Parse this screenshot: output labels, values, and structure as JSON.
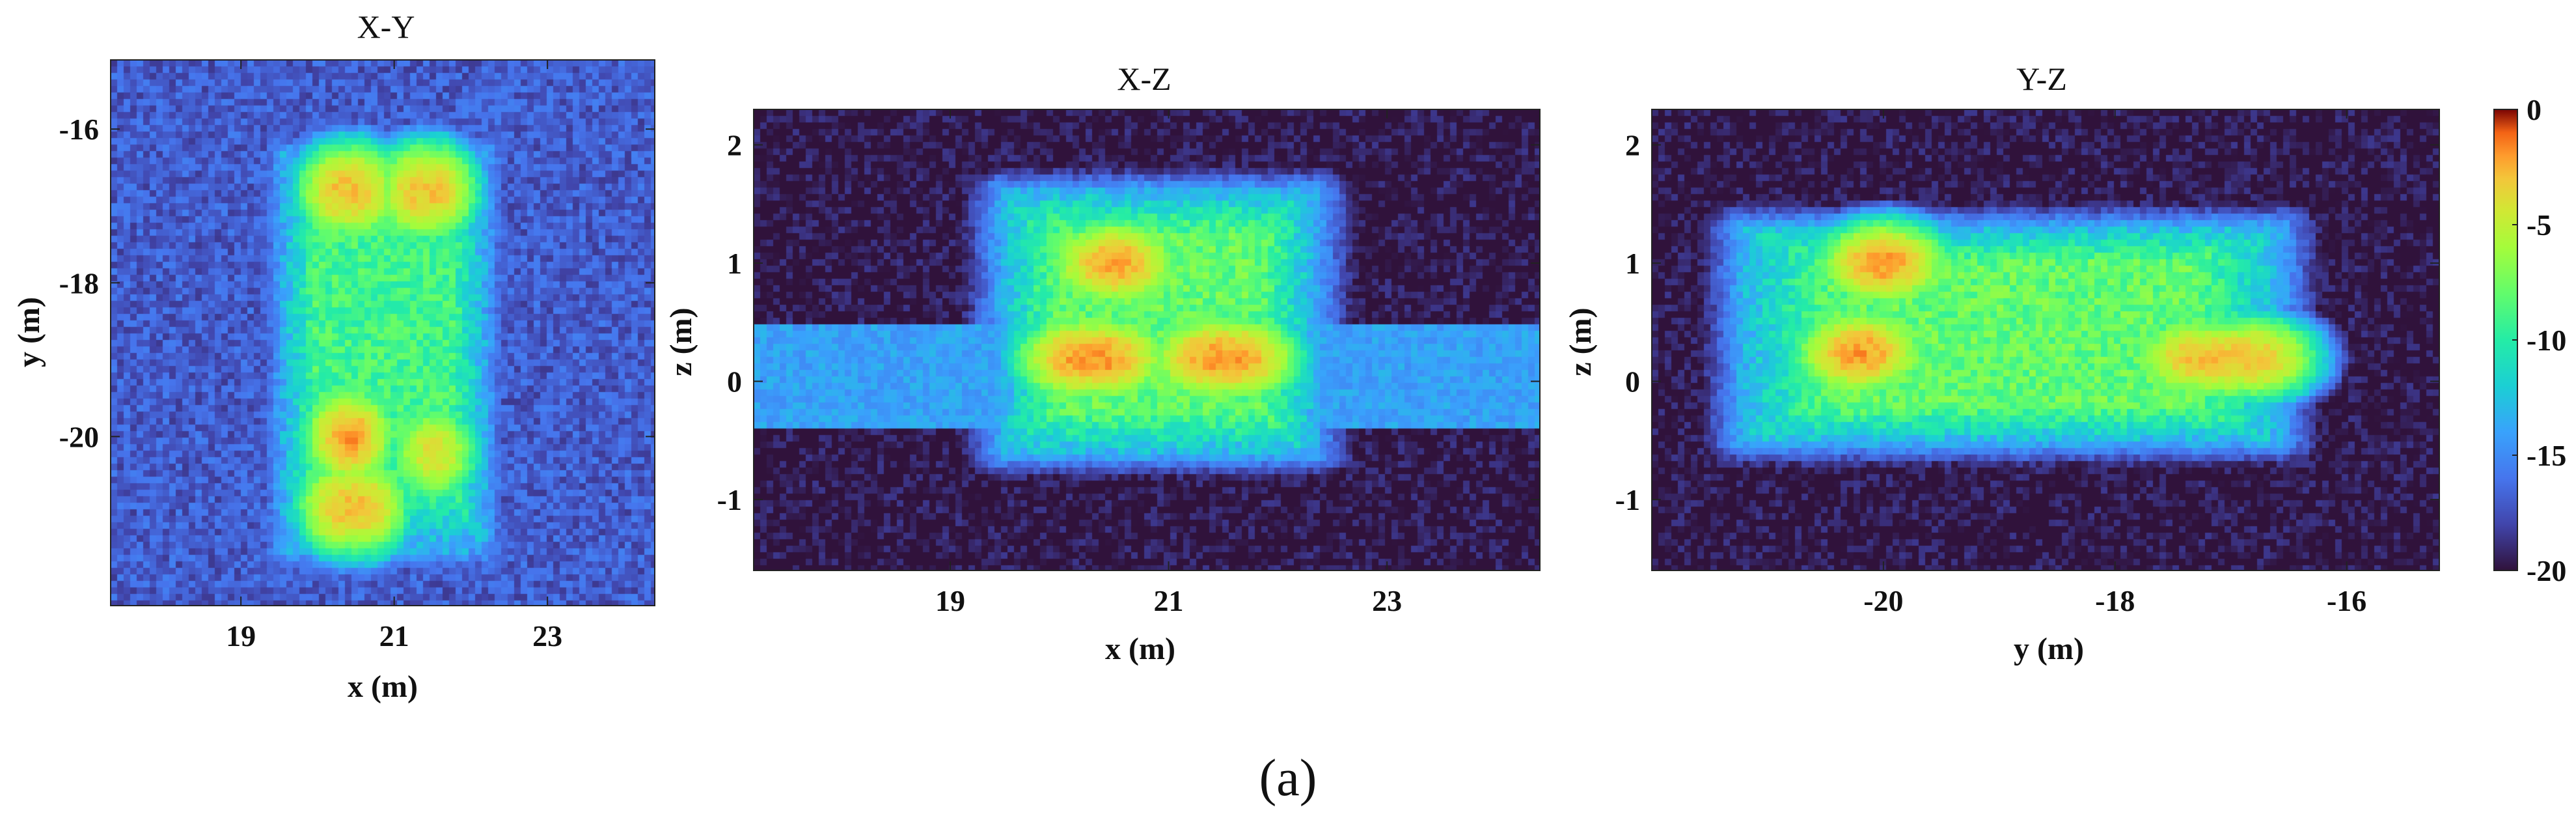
{
  "figure": {
    "caption": "(a)",
    "colorbar": {
      "min": -20,
      "max": 0,
      "ticks": [
        0,
        -5,
        -10,
        -15,
        -20
      ],
      "tick_labels": [
        "0",
        "-5",
        "-10",
        "-15",
        "-20"
      ],
      "colormap": "turbo"
    }
  },
  "chart_data": [
    {
      "type": "heatmap",
      "title": "X-Y",
      "xlabel": "x (m)",
      "ylabel": "y (m)",
      "xlim": [
        17.3,
        24.4
      ],
      "ylim": [
        -22.2,
        -15.1
      ],
      "xticks": [
        19,
        21,
        23
      ],
      "xtick_labels": [
        "19",
        "21",
        "23"
      ],
      "yticks": [
        -16,
        -18,
        -20
      ],
      "ytick_labels": [
        "-16",
        "-18",
        "-20"
      ],
      "background_value": -17,
      "blobs": [
        {
          "x": [
            19.5,
            22.2
          ],
          "y": [
            -21.5,
            -16.3
          ],
          "value": -9
        },
        {
          "x": [
            20.3,
            20.5
          ],
          "y": [
            -16.8,
            -16.8
          ],
          "value": -3
        },
        {
          "x": [
            21.3,
            21.5
          ],
          "y": [
            -16.8,
            -16.8
          ],
          "value": -3
        },
        {
          "x": [
            20.4,
            20.4
          ],
          "y": [
            -20.0,
            -20.0
          ],
          "value": -2
        },
        {
          "x": [
            20.3,
            20.6
          ],
          "y": [
            -20.9,
            -20.9
          ],
          "value": -3
        },
        {
          "x": [
            21.5,
            21.5
          ],
          "y": [
            -20.2,
            -20.2
          ],
          "value": -4
        }
      ]
    },
    {
      "type": "heatmap",
      "title": "X-Z",
      "xlabel": "x (m)",
      "ylabel": "z (m)",
      "xlim": [
        17.2,
        24.4
      ],
      "ylim": [
        -1.6,
        2.3
      ],
      "xticks": [
        19,
        21,
        23
      ],
      "xtick_labels": [
        "19",
        "21",
        "23"
      ],
      "yticks": [
        2,
        1,
        0,
        -1
      ],
      "ytick_labels": [
        "2",
        "1",
        "0",
        "-1"
      ],
      "background_value": -20,
      "ground_band": {
        "z": [
          -0.4,
          0.5
        ],
        "value": -14
      },
      "blobs": [
        {
          "x": [
            19.5,
            22.3
          ],
          "y": [
            -0.6,
            1.6
          ],
          "value": -8
        },
        {
          "x": [
            20.5,
            20.5
          ],
          "y": [
            1.0,
            1.0
          ],
          "value": -2
        },
        {
          "x": [
            20.2,
            20.4
          ],
          "y": [
            0.2,
            0.2
          ],
          "value": -2
        },
        {
          "x": [
            21.4,
            21.6
          ],
          "y": [
            0.2,
            0.2
          ],
          "value": -2
        }
      ]
    },
    {
      "type": "heatmap",
      "title": "Y-Z",
      "xlabel": "y (m)",
      "ylabel": "z (m)",
      "xlim": [
        -22.0,
        -15.2
      ],
      "ylim": [
        -1.6,
        2.3
      ],
      "xticks": [
        -20,
        -18,
        -16
      ],
      "xtick_labels": [
        "-20",
        "-18",
        "-16"
      ],
      "yticks": [
        2,
        1,
        0,
        -1
      ],
      "ytick_labels": [
        "2",
        "1",
        "0",
        "-1"
      ],
      "background_value": -20,
      "blobs": [
        {
          "x": [
            -21.2,
            -16.6
          ],
          "y": [
            -0.5,
            1.3
          ],
          "value": -8
        },
        {
          "x": [
            -20.0,
            -20.0
          ],
          "y": [
            1.0,
            1.0
          ],
          "value": -2
        },
        {
          "x": [
            -20.2,
            -20.2
          ],
          "y": [
            0.25,
            0.25
          ],
          "value": -2
        },
        {
          "x": [
            -17.3,
            -16.8
          ],
          "y": [
            0.2,
            0.2
          ],
          "value": -3
        }
      ]
    }
  ]
}
